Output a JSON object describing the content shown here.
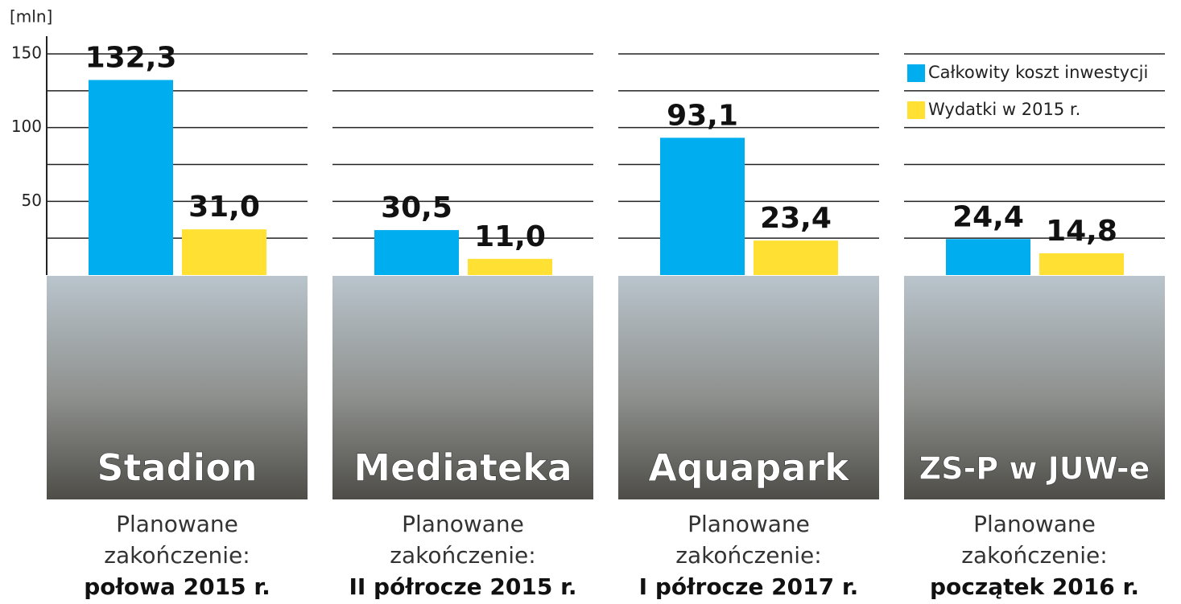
{
  "chart_data": {
    "type": "bar",
    "y_unit": "[mln]",
    "categories": [
      "Stadion",
      "Mediateka",
      "Aquapark",
      "ZS-P w JUW-e"
    ],
    "series": [
      {
        "name": "Całkowity koszt inwestycji",
        "color": "#00aeef",
        "values": [
          132.3,
          30.5,
          93.1,
          24.4
        ],
        "value_labels": [
          "132,3",
          "30,5",
          "93,1",
          "24,4"
        ]
      },
      {
        "name": "Wydatki w 2015 r.",
        "color": "#ffe033",
        "values": [
          31.0,
          11.0,
          23.4,
          14.8
        ],
        "value_labels": [
          "31,0",
          "11,0",
          "23,4",
          "14,8"
        ]
      }
    ],
    "ylim": [
      0,
      150
    ],
    "yticks": [
      50,
      100,
      150
    ],
    "minor_yticks": [
      25,
      75,
      125
    ],
    "grid": true,
    "legend": "top-right",
    "completion_label": [
      "Planowane",
      "zakończenie:"
    ],
    "completion_dates": [
      "połowa 2015 r.",
      "II półrocze 2015 r.",
      "I półrocze 2017 r.",
      "początek 2016 r."
    ]
  }
}
